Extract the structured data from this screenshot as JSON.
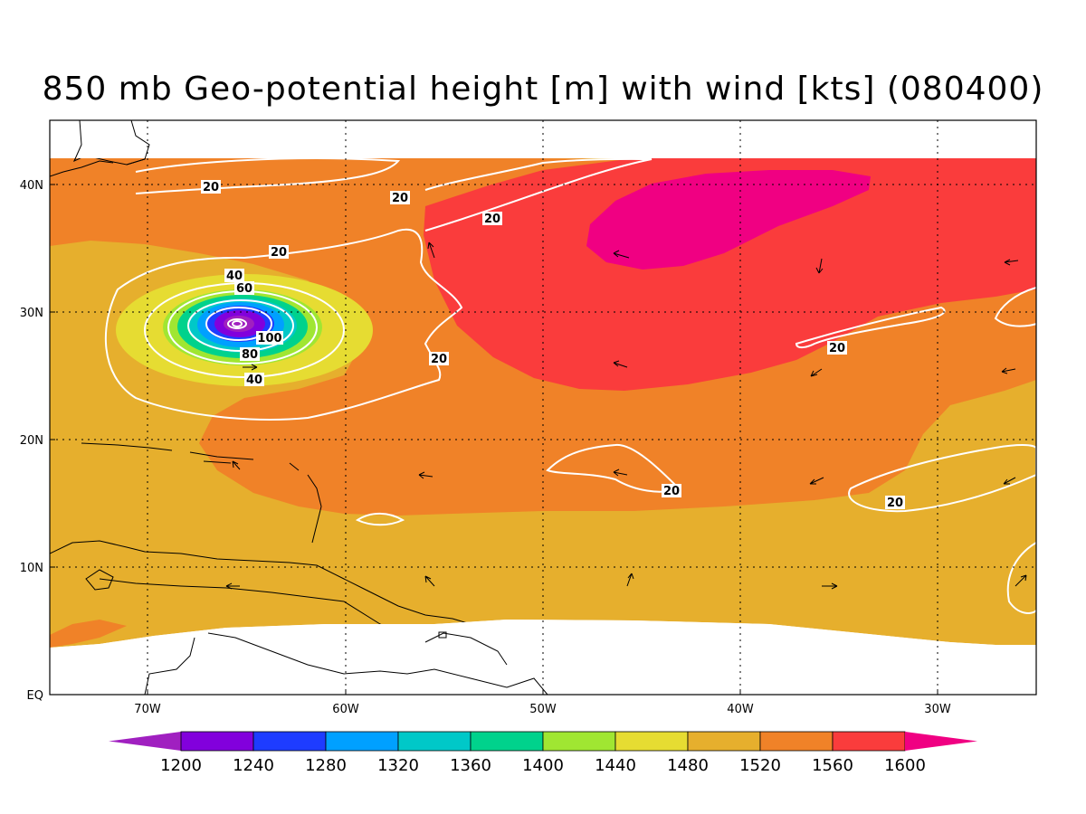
{
  "map": {
    "title": "850 mb Geo-potential height [m] with wind [kts] (080400)",
    "lon_range": [
      -75,
      -25
    ],
    "lat_range": [
      0,
      45
    ],
    "grid": true,
    "lon_ticks": [
      "70W",
      "60W",
      "50W",
      "40W",
      "30W"
    ],
    "lat_ticks": [
      "EQ",
      "10N",
      "20N",
      "30N",
      "40N"
    ],
    "contour_labels": [
      "20",
      "20",
      "20",
      "20",
      "40",
      "60",
      "100",
      "80",
      "40",
      "20",
      "20",
      "20",
      "20"
    ]
  },
  "colorbar": {
    "levels": [
      "1200",
      "1240",
      "1280",
      "1320",
      "1360",
      "1400",
      "1440",
      "1480",
      "1520",
      "1560",
      "1600"
    ],
    "colors": [
      "#a020c0",
      "#8200dc",
      "#1e3cff",
      "#00a0ff",
      "#00c8c8",
      "#00d28c",
      "#a0e632",
      "#e6dc32",
      "#e6af2d",
      "#f08228",
      "#fa3c3c",
      "#f00082"
    ]
  }
}
